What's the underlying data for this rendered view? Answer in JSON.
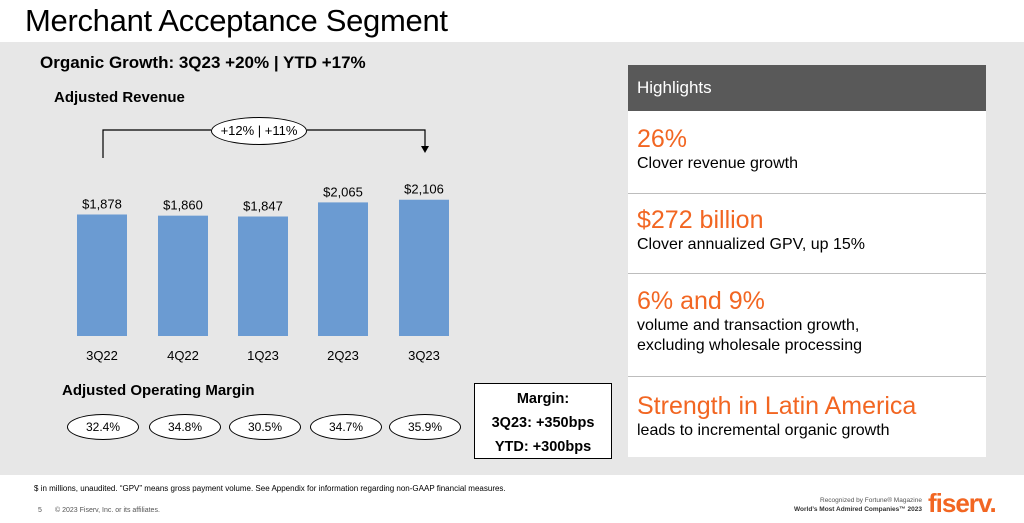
{
  "slide": {
    "title": "Merchant Acceptance Segment",
    "subtitle": "Organic Growth: 3Q23 +20% | YTD +17%",
    "page_number": "5",
    "copyright": "© 2023 Fiserv, Inc. or its affiliates.",
    "footnote": "$ in millions, unaudited. “GPV” means gross payment volume. See Appendix for information regarding non-GAAP financial measures.",
    "recognition_line1": "Recognized by Fortune® Magazine",
    "recognition_line2": "World’s Most Admired Companies™ 2023",
    "logo_text": "fiserv."
  },
  "chart_data": {
    "type": "bar",
    "title": "Adjusted Revenue",
    "categories": [
      "3Q22",
      "4Q22",
      "1Q23",
      "2Q23",
      "3Q23"
    ],
    "values": [
      1878,
      1860,
      1847,
      2065,
      2106
    ],
    "value_labels": [
      "$1,878",
      "$1,860",
      "$1,847",
      "$2,065",
      "$2,106"
    ],
    "bar_color": "#6b9bd2",
    "growth_annotation": "+12% | +11%",
    "ylim": [
      0,
      2300
    ]
  },
  "operating_margin": {
    "title": "Adjusted Operating Margin",
    "values": [
      "32.4%",
      "34.8%",
      "30.5%",
      "34.7%",
      "35.9%"
    ]
  },
  "margin_box": {
    "line1": "Margin:",
    "line2": "3Q23: +350bps",
    "line3": "YTD: +300bps"
  },
  "highlights": {
    "header": "Highlights",
    "accent_color": "#f26622",
    "items": [
      {
        "big": "26%",
        "desc": [
          "Clover revenue growth"
        ]
      },
      {
        "big": "$272 billion",
        "desc": [
          "Clover annualized GPV, up 15%"
        ]
      },
      {
        "big": "6% and 9%",
        "desc": [
          "volume and transaction growth,",
          "excluding wholesale processing"
        ]
      },
      {
        "big": "Strength in Latin America",
        "desc": [
          "leads to incremental organic growth"
        ]
      }
    ]
  }
}
